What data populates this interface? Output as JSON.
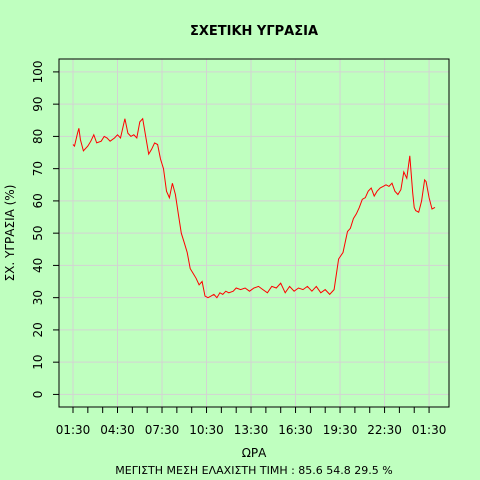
{
  "chart_data": {
    "type": "line",
    "title": "ΣΧΕΤΙΚΗ ΥΓΡΑΣΙΑ",
    "xlabel": "ΩΡΑ",
    "ylabel": "ΣΧ. ΥΓΡΑΣΙΑ (%)",
    "footer": "ΜΕΓΙΣΤΗ ΜΕΣΗ ΕΛΑΧΙΣΤΗ ΤΙΜΗ :  85.6  54.8  29.5   %",
    "ylim": [
      0,
      100
    ],
    "yticks": [
      0,
      10,
      20,
      30,
      40,
      50,
      60,
      70,
      80,
      90,
      100
    ],
    "x_start": "01:30",
    "x_end": "01:30",
    "xtick_labels": [
      "01:30",
      "04:30",
      "07:30",
      "10:30",
      "13:30",
      "16:30",
      "19:30",
      "22:30",
      "01:30"
    ],
    "grid": true,
    "line_color": "#ff0000",
    "series": [
      {
        "x": [
          0.0,
          0.1,
          0.3,
          0.4,
          0.5,
          0.7,
          1.0,
          1.2,
          1.4,
          1.6,
          1.9,
          2.1,
          2.3,
          2.5,
          2.8,
          3.0,
          3.2,
          3.5,
          3.7,
          3.9,
          4.1,
          4.3,
          4.5,
          4.7,
          4.9,
          5.1,
          5.3,
          5.5,
          5.7,
          5.9,
          6.1,
          6.3,
          6.5,
          6.7,
          6.9,
          7.1,
          7.3,
          7.5,
          7.7,
          7.9,
          8.1,
          8.3,
          8.5,
          8.7,
          8.9,
          9.1,
          9.3,
          9.5,
          9.7,
          9.9,
          10.1,
          10.3,
          10.5,
          10.8,
          11.0,
          11.3,
          11.6,
          11.9,
          12.2,
          12.5,
          12.8,
          13.1,
          13.4,
          13.7,
          14.0,
          14.3,
          14.6,
          14.9,
          15.2,
          15.5,
          15.8,
          16.1,
          16.4,
          16.7,
          17.0,
          17.3,
          17.6,
          17.9,
          18.2,
          18.5,
          18.7,
          18.9,
          19.1,
          19.3,
          19.5,
          19.7,
          19.9,
          20.1,
          20.3,
          20.5,
          20.7,
          20.9,
          21.1,
          21.3,
          21.5,
          21.7,
          21.9,
          22.1,
          22.3,
          22.5,
          22.7,
          22.9,
          23.0,
          23.1,
          23.3,
          23.5,
          23.7,
          23.8,
          24.0,
          24.2,
          24.4
        ],
        "y": [
          77.5,
          77.0,
          81.0,
          82.5,
          79.0,
          75.5,
          77.0,
          78.5,
          80.5,
          78.0,
          78.5,
          80.0,
          79.5,
          78.5,
          79.5,
          80.5,
          79.5,
          85.5,
          81.0,
          80.0,
          80.5,
          79.5,
          84.5,
          85.5,
          80.0,
          74.5,
          76.0,
          78.0,
          77.5,
          73.0,
          70.0,
          63.0,
          61.0,
          65.5,
          62.0,
          56.0,
          50.0,
          47.0,
          44.0,
          39.0,
          37.5,
          36.0,
          34.0,
          35.0,
          30.5,
          30.0,
          30.5,
          31.0,
          30.0,
          31.5,
          31.0,
          32.0,
          31.5,
          32.0,
          33.0,
          32.5,
          33.0,
          32.0,
          33.0,
          33.5,
          32.5,
          31.5,
          33.5,
          33.0,
          34.5,
          31.5,
          33.5,
          32.0,
          33.0,
          32.5,
          33.5,
          32.0,
          33.5,
          31.5,
          32.5,
          31.0,
          32.5,
          42.0,
          44.0,
          50.5,
          51.5,
          54.5,
          56.0,
          58.0,
          60.5,
          61.0,
          63.0,
          64.0,
          61.5,
          63.0,
          64.0,
          64.5,
          65.0,
          64.5,
          65.5,
          63.0,
          62.0,
          63.5,
          69.0,
          67.0,
          74.0,
          62.5,
          58.0,
          57.0,
          56.5,
          60.0,
          66.5,
          66.0,
          61.0,
          57.5,
          58.0
        ]
      }
    ]
  }
}
